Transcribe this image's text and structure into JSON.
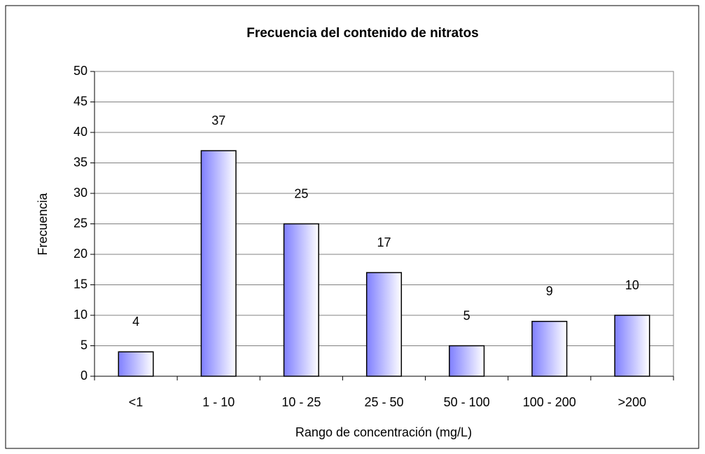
{
  "chart_data": {
    "type": "bar",
    "title": "Frecuencia del contenido de nitratos",
    "x_label": "Rango de concentración (mg/L)",
    "y_label": "Frecuencia",
    "categories": [
      "<1",
      "1 - 10",
      "10 - 25",
      "25 - 50",
      "50 - 100",
      "100 - 200",
      ">200"
    ],
    "values": [
      4,
      37,
      25,
      17,
      5,
      9,
      10
    ],
    "color": "#7f7fff",
    "ylim": [
      0,
      50
    ],
    "yticks": [
      0,
      5,
      10,
      15,
      20,
      25,
      30,
      35,
      40,
      45,
      50
    ],
    "grid": true
  }
}
